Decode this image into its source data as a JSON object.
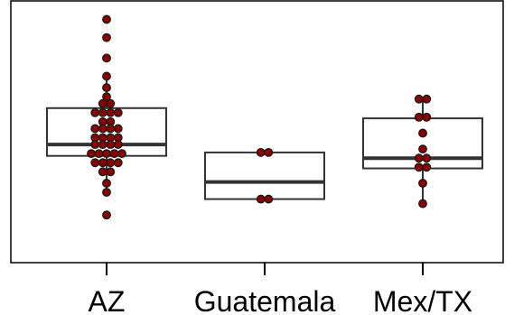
{
  "chart_data": {
    "type": "boxplot",
    "title": "",
    "xlabel": "",
    "ylabel": "",
    "categories": [
      "AZ",
      "Guatemala",
      "Mex/TX"
    ],
    "y_axis_visible": false,
    "grid": false,
    "colors": {
      "point_fill": "#8b0000",
      "point_stroke": "#1a1a1a",
      "box_stroke": "#333333",
      "axis": "#000000"
    },
    "boxes": [
      {
        "category": "AZ",
        "whisker_low": 2.4,
        "q1": 4.0,
        "median": 4.5,
        "q3": 6.1,
        "whisker_high": 7.5
      },
      {
        "category": "Guatemala",
        "whisker_low": 2.1,
        "q1": 2.1,
        "median": 2.85,
        "q3": 4.15,
        "whisker_high": 4.15
      },
      {
        "category": "Mex/TX",
        "whisker_low": 1.9,
        "q1": 3.45,
        "median": 3.9,
        "q3": 5.65,
        "whisker_high": 6.5
      },
      {
        "_": "values in arbitrary units; no y-axis printed"
      }
    ],
    "points": [
      {
        "category": "AZ",
        "values": [
          10.0,
          9.2,
          8.3,
          7.5,
          7.0,
          6.6,
          6.3,
          6.3,
          5.9,
          5.9,
          5.9,
          5.9,
          5.5,
          5.5,
          5.2,
          5.2,
          5.2,
          5.2,
          4.8,
          4.8,
          4.8,
          4.8,
          4.5,
          4.5,
          4.5,
          4.5,
          4.1,
          4.1,
          4.1,
          4.1,
          4.1,
          3.7,
          3.7,
          3.7,
          3.7,
          3.3,
          3.3,
          2.8,
          2.4,
          1.4
        ]
      },
      {
        "category": "Guatemala",
        "values": [
          4.15,
          4.15,
          2.1,
          2.1
        ]
      },
      {
        "category": "Mex/TX",
        "values": [
          6.5,
          6.5,
          5.7,
          5.7,
          5.0,
          4.3,
          3.9,
          3.9,
          3.5,
          3.5,
          2.8,
          1.9
        ]
      }
    ]
  }
}
